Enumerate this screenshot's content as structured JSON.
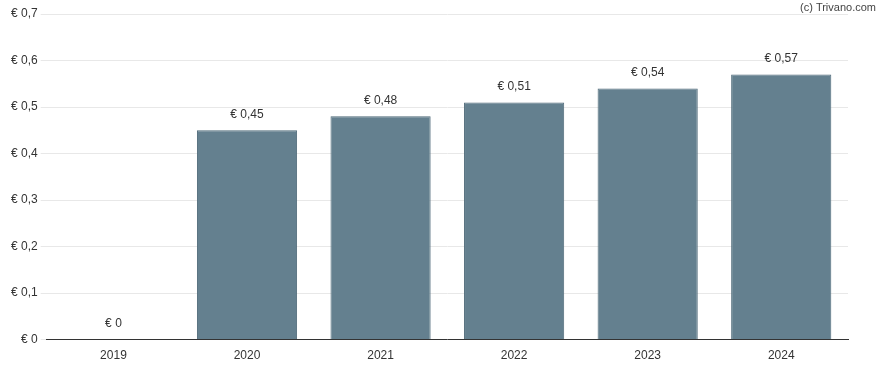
{
  "chart_data": {
    "type": "bar",
    "categories": [
      "2019",
      "2020",
      "2021",
      "2022",
      "2023",
      "2024"
    ],
    "values": [
      0,
      0.45,
      0.48,
      0.51,
      0.54,
      0.57
    ],
    "value_labels": [
      "€ 0",
      "€ 0,45",
      "€ 0,48",
      "€ 0,51",
      "€ 0,54",
      "€ 0,57"
    ],
    "data_labels": true,
    "color": "#64808f",
    "ylim": [
      0,
      0.7
    ],
    "yticks": [
      {
        "value": 0,
        "label": "€ 0"
      },
      {
        "value": 0.1,
        "label": "€ 0,1"
      },
      {
        "value": 0.2,
        "label": "€ 0,2"
      },
      {
        "value": 0.3,
        "label": "€ 0,3"
      },
      {
        "value": 0.4,
        "label": "€ 0,4"
      },
      {
        "value": 0.5,
        "label": "€ 0,5"
      },
      {
        "value": 0.6,
        "label": "€ 0,6"
      },
      {
        "value": 0.7,
        "label": "€ 0,7"
      }
    ],
    "grid": true,
    "annotations": [
      "(c) Trivano.com"
    ]
  }
}
